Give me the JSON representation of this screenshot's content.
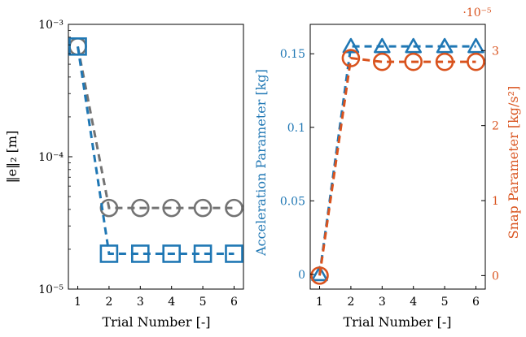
{
  "colors": {
    "blue": "#1f77b4",
    "orange": "#d9531e",
    "gray": "#737373",
    "axis": "#000000"
  },
  "chart_data": [
    {
      "type": "line",
      "yscale": "log",
      "xlim": [
        0.7,
        6.3
      ],
      "ylim": [
        1e-05,
        0.001
      ],
      "xlabel": "Trial Number [-]",
      "ylabel": "‖e‖₂ [m]",
      "x": [
        1,
        2,
        3,
        4,
        5,
        6
      ],
      "xticks": [
        "1",
        "2",
        "3",
        "4",
        "5",
        "6"
      ],
      "yticks": [
        {
          "value": 1e-05,
          "label": "10⁻⁵"
        },
        {
          "value": 0.0001,
          "label": "10⁻⁴"
        },
        {
          "value": 0.001,
          "label": "10⁻³"
        }
      ],
      "series": [
        {
          "color": "gray",
          "marker": "circle",
          "values": [
            0.00068,
            4.1e-05,
            4.1e-05,
            4.1e-05,
            4.1e-05,
            4.1e-05
          ]
        },
        {
          "color": "blue",
          "marker": "square",
          "values": [
            0.00068,
            1.85e-05,
            1.85e-05,
            1.85e-05,
            1.85e-05,
            1.85e-05
          ]
        }
      ]
    },
    {
      "type": "line",
      "xlim": [
        0.7,
        6.3
      ],
      "xlabel": "Trial Number [-]",
      "x": [
        1,
        2,
        3,
        4,
        5,
        6
      ],
      "xticks": [
        "1",
        "2",
        "3",
        "4",
        "5",
        "6"
      ],
      "left_axis": {
        "label": "Acceleration Parameter [kg]",
        "ylim": [
          -0.01,
          0.17
        ],
        "ticks": [
          {
            "value": 0,
            "label": "0"
          },
          {
            "value": 0.05,
            "label": "0.05"
          },
          {
            "value": 0.1,
            "label": "0.1"
          },
          {
            "value": 0.15,
            "label": "0.15"
          }
        ]
      },
      "right_axis": {
        "label": "Snap Parameter [kg/s²]",
        "multiplier": "·10⁻⁵",
        "ylim": [
          -0.18,
          3.35
        ],
        "ticks": [
          {
            "value": 0,
            "label": "0"
          },
          {
            "value": 1,
            "label": "1"
          },
          {
            "value": 2,
            "label": "2"
          },
          {
            "value": 3,
            "label": "3"
          }
        ]
      },
      "series": [
        {
          "axis": "left",
          "color": "blue",
          "marker": "triangle",
          "values": [
            0,
            0.155,
            0.155,
            0.155,
            0.155,
            0.155
          ]
        },
        {
          "axis": "right",
          "color": "orange",
          "marker": "circle",
          "values": [
            0,
            2.9,
            2.85,
            2.85,
            2.85,
            2.85
          ]
        }
      ]
    }
  ]
}
